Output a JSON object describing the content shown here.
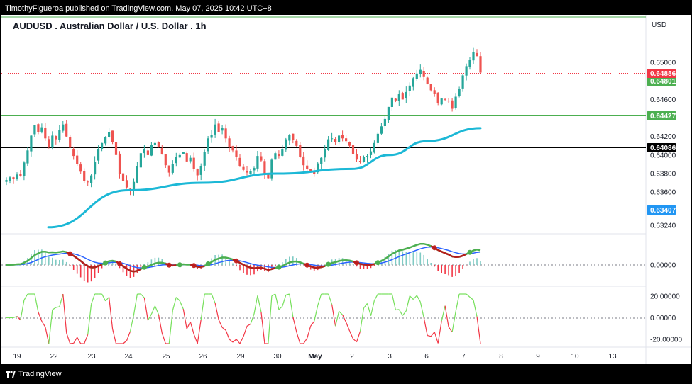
{
  "header": {
    "publisher_line": "TimothyFigueroa published on TradingView.com, May 07, 2025 10:42 UTC+8",
    "symbol_title": "AUDUSD . Australian Dollar / U.S. Dollar . 1h"
  },
  "footer": {
    "brand": "TradingView",
    "logo_icon": "tradingview-logo-icon"
  },
  "colors": {
    "bull": "#26a69a",
    "bear": "#ef5350",
    "ema": "#1cb8d6",
    "green_line": "#4caf50",
    "black_line": "#000000",
    "blue_line": "#2196f3",
    "red_badge": "#f23645",
    "green_badge": "#4caf50",
    "black_badge": "#000000",
    "blue_badge": "#2196f3"
  },
  "chart_data": {
    "type": "candlestick",
    "currency": "USD",
    "x_ticks": [
      "19",
      "22",
      "23",
      "24",
      "25",
      "26",
      "29",
      "30",
      "May",
      "2",
      "3",
      "6",
      "7",
      "8",
      "9",
      "10",
      "13"
    ],
    "price_ticks": [
      "0.65000",
      "0.64600",
      "0.64200",
      "0.64000",
      "0.63800",
      "0.63600",
      "0.63240"
    ],
    "price_range": [
      0.6318,
      0.6546
    ],
    "horizontal_lines": [
      {
        "price": 0.64801,
        "label": "0.64801",
        "color": "green"
      },
      {
        "price": 0.64427,
        "label": "0.64427",
        "color": "green"
      },
      {
        "price": 0.64086,
        "label": "0.64086",
        "color": "black"
      },
      {
        "price": 0.63407,
        "label": "0.63407",
        "color": "blue"
      }
    ],
    "last_price": {
      "price": 0.64886,
      "label": "0.64886"
    },
    "macd_ticks": [
      "0.00000"
    ],
    "oscillator_ticks": [
      "20.00000",
      "0.00000",
      "-20.00000"
    ],
    "oscillator_range": [
      -26,
      24
    ],
    "close_series": [
      0.6373,
      0.6376,
      0.6374,
      0.6379,
      0.6377,
      0.6392,
      0.6405,
      0.6421,
      0.6432,
      0.6425,
      0.643,
      0.6418,
      0.6409,
      0.6421,
      0.6417,
      0.6427,
      0.6433,
      0.642,
      0.6408,
      0.6399,
      0.639,
      0.6382,
      0.6372,
      0.6371,
      0.6378,
      0.6393,
      0.6406,
      0.6413,
      0.6419,
      0.6425,
      0.6414,
      0.64,
      0.638,
      0.6372,
      0.6365,
      0.6361,
      0.6371,
      0.6388,
      0.6402,
      0.6406,
      0.64,
      0.6411,
      0.6413,
      0.6409,
      0.6401,
      0.6389,
      0.6381,
      0.639,
      0.6398,
      0.64,
      0.6403,
      0.6393,
      0.6397,
      0.6385,
      0.6378,
      0.6388,
      0.6403,
      0.6418,
      0.6422,
      0.6433,
      0.6425,
      0.6429,
      0.6418,
      0.6409,
      0.6405,
      0.6398,
      0.6388,
      0.6384,
      0.6381,
      0.6383,
      0.6386,
      0.6399,
      0.6394,
      0.638,
      0.6375,
      0.6395,
      0.6402,
      0.6399,
      0.6406,
      0.6417,
      0.6422,
      0.6416,
      0.641,
      0.6398,
      0.6389,
      0.6385,
      0.6383,
      0.638,
      0.6391,
      0.6397,
      0.6406,
      0.6417,
      0.6418,
      0.6414,
      0.6421,
      0.6418,
      0.6415,
      0.641,
      0.6401,
      0.6395,
      0.6393,
      0.6398,
      0.6399,
      0.6404,
      0.6413,
      0.6423,
      0.6431,
      0.6439,
      0.6452,
      0.6462,
      0.6459,
      0.6466,
      0.646,
      0.6468,
      0.6475,
      0.6483,
      0.6488,
      0.6492,
      0.6485,
      0.6477,
      0.647,
      0.6466,
      0.6456,
      0.6461,
      0.646,
      0.6458,
      0.645,
      0.6463,
      0.6471,
      0.6486,
      0.6496,
      0.6503,
      0.6511,
      0.6507,
      0.6489
    ],
    "ema_series": [
      {
        "x": "22",
        "value": 0.6322
      },
      {
        "x": "24",
        "value": 0.6362
      },
      {
        "x": "26",
        "value": 0.637
      },
      {
        "x": "30",
        "value": 0.638
      },
      {
        "x": "2",
        "value": 0.6385
      },
      {
        "x": "3",
        "value": 0.64
      },
      {
        "x": "6",
        "value": 0.6415
      },
      {
        "x": "7",
        "value": 0.6429
      }
    ]
  }
}
